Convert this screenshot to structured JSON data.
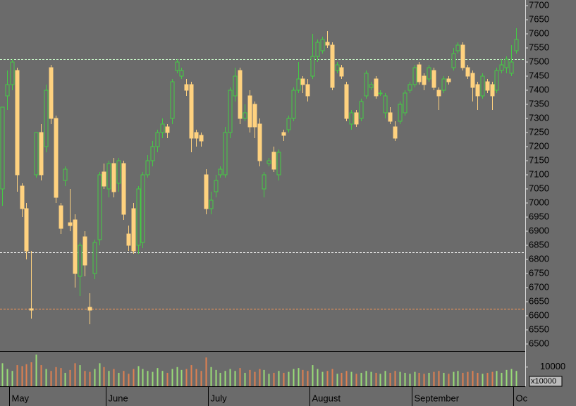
{
  "chart_data": {
    "type": "candlestick",
    "up_color": "#44cc44",
    "down_color": "#ffd27f",
    "ylim": [
      6475,
      7720
    ],
    "yticks": [
      6500,
      6550,
      6600,
      6650,
      6700,
      6750,
      6800,
      6850,
      6900,
      6950,
      7000,
      7050,
      7100,
      7150,
      7200,
      7250,
      7300,
      7350,
      7400,
      7450,
      7500,
      7550,
      7600,
      7650,
      7700
    ],
    "candles": [
      [
        7050,
        7340,
        6990,
        7340
      ],
      [
        7380,
        7470,
        7330,
        7420
      ],
      [
        7420,
        7510,
        7400,
        7500
      ],
      [
        7470,
        7480,
        7040,
        7100
      ],
      [
        7060,
        7070,
        6950,
        6980
      ],
      [
        6980,
        7000,
        6800,
        6830
      ],
      [
        6625,
        6830,
        6590,
        6620
      ],
      [
        7100,
        7250,
        7090,
        7250
      ],
      [
        7250,
        7280,
        7080,
        7100
      ],
      [
        7200,
        7420,
        7180,
        7400
      ],
      [
        7480,
        7490,
        7280,
        7300
      ],
      [
        7300,
        7310,
        7000,
        7020
      ],
      [
        6990,
        7000,
        6890,
        6910
      ],
      [
        7080,
        7130,
        7060,
        7120
      ],
      [
        6930,
        7050,
        6900,
        6920
      ],
      [
        6940,
        6960,
        6700,
        6750
      ],
      [
        6740,
        6860,
        6670,
        6850
      ],
      [
        6880,
        6900,
        6740,
        6780
      ],
      [
        6630,
        6680,
        6570,
        6620
      ],
      [
        6750,
        6870,
        6730,
        6860
      ],
      [
        6870,
        7110,
        6850,
        7100
      ],
      [
        7110,
        7140,
        7050,
        7060
      ],
      [
        7050,
        7150,
        7020,
        7140
      ],
      [
        7140,
        7160,
        7020,
        7040
      ],
      [
        7070,
        7160,
        7040,
        7150
      ],
      [
        7140,
        7150,
        6940,
        6960
      ],
      [
        6890,
        6920,
        6830,
        6850
      ],
      [
        6980,
        7000,
        6820,
        6830
      ],
      [
        6850,
        7060,
        6820,
        7050
      ],
      [
        6860,
        7110,
        6840,
        7100
      ],
      [
        7100,
        7170,
        7090,
        7150
      ],
      [
        7150,
        7220,
        7130,
        7200
      ],
      [
        7200,
        7260,
        7180,
        7250
      ],
      [
        7250,
        7300,
        7230,
        7280
      ],
      [
        7270,
        7280,
        7230,
        7250
      ],
      [
        7300,
        7440,
        7280,
        7430
      ],
      [
        7470,
        7510,
        7460,
        7500
      ],
      [
        7450,
        7480,
        7440,
        7470
      ],
      [
        7420,
        7440,
        7380,
        7400
      ],
      [
        7420,
        7430,
        7180,
        7230
      ],
      [
        7250,
        7260,
        7200,
        7230
      ],
      [
        7240,
        7250,
        7200,
        7220
      ],
      [
        7100,
        7120,
        6960,
        6980
      ],
      [
        6980,
        7040,
        6960,
        7010
      ],
      [
        7040,
        7100,
        7020,
        7080
      ],
      [
        7100,
        7130,
        7090,
        7120
      ],
      [
        7100,
        7270,
        7090,
        7250
      ],
      [
        7250,
        7410,
        7230,
        7400
      ],
      [
        7380,
        7480,
        7360,
        7450
      ],
      [
        7470,
        7480,
        7280,
        7300
      ],
      [
        7300,
        7350,
        7290,
        7320
      ],
      [
        7380,
        7400,
        7250,
        7270
      ],
      [
        7350,
        7360,
        7230,
        7270
      ],
      [
        7280,
        7300,
        7130,
        7150
      ],
      [
        7050,
        7110,
        7020,
        7100
      ],
      [
        7140,
        7160,
        7130,
        7150
      ],
      [
        7180,
        7200,
        7110,
        7120
      ],
      [
        7100,
        7190,
        7080,
        7180
      ],
      [
        7250,
        7260,
        7220,
        7240
      ],
      [
        7260,
        7310,
        7250,
        7300
      ],
      [
        7300,
        7410,
        7290,
        7400
      ],
      [
        7400,
        7500,
        7390,
        7440
      ],
      [
        7440,
        7450,
        7390,
        7420
      ],
      [
        7420,
        7440,
        7360,
        7380
      ],
      [
        7450,
        7600,
        7440,
        7520
      ],
      [
        7520,
        7580,
        7500,
        7570
      ],
      [
        7540,
        7590,
        7530,
        7580
      ],
      [
        7570,
        7610,
        7550,
        7560
      ],
      [
        7560,
        7570,
        7400,
        7410
      ],
      [
        7470,
        7500,
        7460,
        7490
      ],
      [
        7480,
        7490,
        7440,
        7450
      ],
      [
        7420,
        7430,
        7290,
        7300
      ],
      [
        7280,
        7330,
        7260,
        7320
      ],
      [
        7320,
        7330,
        7270,
        7280
      ],
      [
        7300,
        7370,
        7290,
        7360
      ],
      [
        7380,
        7470,
        7370,
        7460
      ],
      [
        7410,
        7430,
        7400,
        7420
      ],
      [
        7440,
        7450,
        7370,
        7380
      ],
      [
        7390,
        7400,
        7380,
        7390
      ],
      [
        7320,
        7390,
        7300,
        7380
      ],
      [
        7320,
        7340,
        7280,
        7290
      ],
      [
        7270,
        7290,
        7220,
        7230
      ],
      [
        7290,
        7360,
        7280,
        7350
      ],
      [
        7320,
        7400,
        7310,
        7390
      ],
      [
        7400,
        7430,
        7390,
        7420
      ],
      [
        7420,
        7490,
        7410,
        7480
      ],
      [
        7490,
        7500,
        7420,
        7430
      ],
      [
        7450,
        7460,
        7400,
        7420
      ],
      [
        7440,
        7490,
        7430,
        7480
      ],
      [
        7470,
        7480,
        7400,
        7410
      ],
      [
        7400,
        7410,
        7330,
        7380
      ],
      [
        7400,
        7450,
        7390,
        7440
      ],
      [
        7440,
        7450,
        7420,
        7430
      ],
      [
        7480,
        7550,
        7470,
        7530
      ],
      [
        7540,
        7570,
        7530,
        7560
      ],
      [
        7560,
        7570,
        7470,
        7480
      ],
      [
        7480,
        7490,
        7440,
        7450
      ],
      [
        7460,
        7470,
        7360,
        7410
      ],
      [
        7420,
        7430,
        7330,
        7380
      ],
      [
        7380,
        7460,
        7370,
        7450
      ],
      [
        7430,
        7440,
        7390,
        7400
      ],
      [
        7420,
        7430,
        7330,
        7380
      ],
      [
        7400,
        7480,
        7390,
        7470
      ],
      [
        7470,
        7510,
        7460,
        7490
      ],
      [
        7480,
        7520,
        7460,
        7510
      ],
      [
        7460,
        7560,
        7450,
        7500
      ],
      [
        7540,
        7620,
        7530,
        7580
      ]
    ],
    "volume": {
      "ylim": [
        0,
        18000
      ],
      "yticks": [
        10000
      ],
      "unit_label": "x10000",
      "up_color": "#99dd77",
      "down_color": "#e08050",
      "values": [
        12000,
        9000,
        8000,
        11000,
        10500,
        11500,
        12500,
        16500,
        11000,
        9000,
        8000,
        10000,
        9500,
        7000,
        8500,
        12000,
        11000,
        8000,
        7500,
        9000,
        12000,
        10000,
        8000,
        9000,
        7000,
        8000,
        6500,
        9000,
        10500,
        9000,
        8000,
        7500,
        9500,
        8000,
        7000,
        9000,
        10000,
        8500,
        9000,
        11000,
        9000,
        8000,
        15000,
        10000,
        8500,
        7000,
        8000,
        9000,
        8000,
        9500,
        7000,
        8500,
        7500,
        9000,
        8500,
        6500,
        7000,
        8000,
        7000,
        7500,
        9000,
        9500,
        8500,
        8000,
        11000,
        9000,
        7500,
        8000,
        9000,
        6500,
        7000,
        8000,
        7500,
        6500,
        7000,
        8000,
        7500,
        7000,
        6500,
        8000,
        7000,
        8000,
        7500,
        7000,
        6500,
        7500,
        7000,
        6500,
        7000,
        7500,
        8000,
        7000,
        6500,
        7500,
        8000,
        7000,
        7500,
        8000,
        7000,
        6500,
        7000,
        7500,
        8000,
        7000,
        8500,
        9000,
        8000
      ]
    },
    "reference_lines": [
      {
        "value": 7510,
        "color": "#ccffcc"
      },
      {
        "value": 6825,
        "color": "#ffffff"
      },
      {
        "value": 6625,
        "color": "#ff9955"
      }
    ],
    "months": [
      {
        "label": "May",
        "index": 2
      },
      {
        "label": "June",
        "index": 22
      },
      {
        "label": "July",
        "index": 43
      },
      {
        "label": "August",
        "index": 64
      },
      {
        "label": "September",
        "index": 85
      },
      {
        "label": "Oc",
        "index": 106
      }
    ]
  }
}
